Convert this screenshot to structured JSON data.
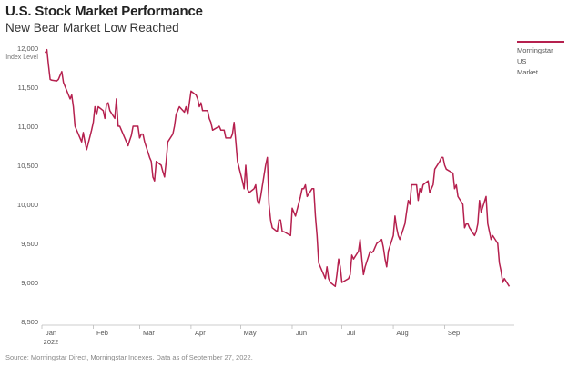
{
  "header": {
    "title": "U.S. Stock Market Performance",
    "subtitle": "New Bear Market Low Reached"
  },
  "legend": {
    "label": "Morningstar\nUS\nMarket",
    "color": "#b5204e"
  },
  "source": "Source: Morningstar Direct, Morningstar Indexes. Data as of September 27, 2022.",
  "chart_data": {
    "type": "line",
    "title": "U.S. Stock Market Performance",
    "subtitle": "New Bear Market Low Reached",
    "ylabel": "Index Level",
    "ylim": [
      8500,
      12000
    ],
    "yticks": [
      "12,000",
      "11,500",
      "11,000",
      "10,500",
      "10,000",
      "9,500",
      "9,000",
      "8,500"
    ],
    "ytick_values": [
      12000,
      11500,
      11000,
      10500,
      10000,
      9500,
      9000,
      8500
    ],
    "xlim": [
      "2022-01-01",
      "2022-09-30"
    ],
    "xticks": [
      {
        "label": "Jan",
        "date": "2022-01-01"
      },
      {
        "label": "Feb",
        "date": "2022-02-01"
      },
      {
        "label": "Mar",
        "date": "2022-03-01"
      },
      {
        "label": "Apr",
        "date": "2022-04-01"
      },
      {
        "label": "May",
        "date": "2022-05-01"
      },
      {
        "label": "Jun",
        "date": "2022-06-01"
      },
      {
        "label": "Jul",
        "date": "2022-07-01"
      },
      {
        "label": "Aug",
        "date": "2022-08-01"
      },
      {
        "label": "Sep",
        "date": "2022-09-01"
      }
    ],
    "xyear_label": "2022",
    "grid": false,
    "legend_position": "top-right",
    "series": [
      {
        "name": "Morningstar US Market",
        "color": "#b5204e",
        "points": [
          [
            "2022-01-03",
            11940
          ],
          [
            "2022-01-04",
            11980
          ],
          [
            "2022-01-05",
            11780
          ],
          [
            "2022-01-06",
            11600
          ],
          [
            "2022-01-07",
            11590
          ],
          [
            "2022-01-10",
            11580
          ],
          [
            "2022-01-11",
            11600
          ],
          [
            "2022-01-12",
            11650
          ],
          [
            "2022-01-13",
            11700
          ],
          [
            "2022-01-14",
            11560
          ],
          [
            "2022-01-18",
            11350
          ],
          [
            "2022-01-19",
            11400
          ],
          [
            "2022-01-20",
            11250
          ],
          [
            "2022-01-21",
            11000
          ],
          [
            "2022-01-24",
            10850
          ],
          [
            "2022-01-25",
            10800
          ],
          [
            "2022-01-26",
            10920
          ],
          [
            "2022-01-27",
            10800
          ],
          [
            "2022-01-28",
            10700
          ],
          [
            "2022-01-31",
            10950
          ],
          [
            "2022-02-01",
            11050
          ],
          [
            "2022-02-02",
            11250
          ],
          [
            "2022-02-03",
            11150
          ],
          [
            "2022-02-04",
            11250
          ],
          [
            "2022-02-07",
            11200
          ],
          [
            "2022-02-08",
            11100
          ],
          [
            "2022-02-09",
            11280
          ],
          [
            "2022-02-10",
            11300
          ],
          [
            "2022-02-11",
            11200
          ],
          [
            "2022-02-14",
            11100
          ],
          [
            "2022-02-15",
            11350
          ],
          [
            "2022-02-16",
            11000
          ],
          [
            "2022-02-17",
            11000
          ],
          [
            "2022-02-18",
            10950
          ],
          [
            "2022-02-22",
            10750
          ],
          [
            "2022-02-23",
            10820
          ],
          [
            "2022-02-24",
            10880
          ],
          [
            "2022-02-25",
            11000
          ],
          [
            "2022-02-28",
            11000
          ],
          [
            "2022-03-01",
            10850
          ],
          [
            "2022-03-02",
            10900
          ],
          [
            "2022-03-03",
            10900
          ],
          [
            "2022-03-04",
            10800
          ],
          [
            "2022-03-07",
            10600
          ],
          [
            "2022-03-08",
            10550
          ],
          [
            "2022-03-09",
            10350
          ],
          [
            "2022-03-10",
            10300
          ],
          [
            "2022-03-11",
            10550
          ],
          [
            "2022-03-14",
            10500
          ],
          [
            "2022-03-15",
            10420
          ],
          [
            "2022-03-16",
            10350
          ],
          [
            "2022-03-17",
            10550
          ],
          [
            "2022-03-18",
            10800
          ],
          [
            "2022-03-21",
            10900
          ],
          [
            "2022-03-22",
            11000
          ],
          [
            "2022-03-23",
            11150
          ],
          [
            "2022-03-24",
            11200
          ],
          [
            "2022-03-25",
            11250
          ],
          [
            "2022-03-28",
            11180
          ],
          [
            "2022-03-29",
            11250
          ],
          [
            "2022-03-30",
            11150
          ],
          [
            "2022-03-31",
            11300
          ],
          [
            "2022-04-01",
            11450
          ],
          [
            "2022-04-04",
            11400
          ],
          [
            "2022-04-05",
            11350
          ],
          [
            "2022-04-06",
            11250
          ],
          [
            "2022-04-07",
            11300
          ],
          [
            "2022-04-08",
            11200
          ],
          [
            "2022-04-11",
            11200
          ],
          [
            "2022-04-12",
            11100
          ],
          [
            "2022-04-13",
            11050
          ],
          [
            "2022-04-14",
            10950
          ],
          [
            "2022-04-18",
            11000
          ],
          [
            "2022-04-19",
            10950
          ],
          [
            "2022-04-20",
            10950
          ],
          [
            "2022-04-21",
            10950
          ],
          [
            "2022-04-22",
            10850
          ],
          [
            "2022-04-25",
            10850
          ],
          [
            "2022-04-26",
            10900
          ],
          [
            "2022-04-27",
            11050
          ],
          [
            "2022-04-28",
            10800
          ],
          [
            "2022-04-29",
            10550
          ],
          [
            "2022-05-02",
            10300
          ],
          [
            "2022-05-03",
            10200
          ],
          [
            "2022-05-04",
            10500
          ],
          [
            "2022-05-05",
            10200
          ],
          [
            "2022-05-06",
            10150
          ],
          [
            "2022-05-09",
            10200
          ],
          [
            "2022-05-10",
            10250
          ],
          [
            "2022-05-11",
            10050
          ],
          [
            "2022-05-12",
            10000
          ],
          [
            "2022-05-13",
            10100
          ],
          [
            "2022-05-16",
            10500
          ],
          [
            "2022-05-17",
            10600
          ],
          [
            "2022-05-18",
            10000
          ],
          [
            "2022-05-19",
            9800
          ],
          [
            "2022-05-20",
            9700
          ],
          [
            "2022-05-23",
            9650
          ],
          [
            "2022-05-24",
            9800
          ],
          [
            "2022-05-25",
            9800
          ],
          [
            "2022-05-26",
            9650
          ],
          [
            "2022-05-27",
            9650
          ],
          [
            "2022-05-31",
            9600
          ],
          [
            "2022-06-01",
            9950
          ],
          [
            "2022-06-02",
            9900
          ],
          [
            "2022-06-03",
            9850
          ],
          [
            "2022-06-06",
            10100
          ],
          [
            "2022-06-07",
            10200
          ],
          [
            "2022-06-08",
            10200
          ],
          [
            "2022-06-09",
            10250
          ],
          [
            "2022-06-10",
            10100
          ],
          [
            "2022-06-13",
            10200
          ],
          [
            "2022-06-14",
            10200
          ],
          [
            "2022-06-15",
            9850
          ],
          [
            "2022-06-16",
            9600
          ],
          [
            "2022-06-17",
            9250
          ],
          [
            "2022-06-21",
            9050
          ],
          [
            "2022-06-22",
            9200
          ],
          [
            "2022-06-23",
            9050
          ],
          [
            "2022-06-24",
            9000
          ],
          [
            "2022-06-27",
            8950
          ],
          [
            "2022-06-28",
            9100
          ],
          [
            "2022-06-29",
            9300
          ],
          [
            "2022-06-30",
            9200
          ],
          [
            "2022-07-01",
            9000
          ],
          [
            "2022-07-05",
            9050
          ],
          [
            "2022-07-06",
            9100
          ],
          [
            "2022-07-07",
            9350
          ],
          [
            "2022-07-08",
            9300
          ],
          [
            "2022-07-11",
            9400
          ],
          [
            "2022-07-12",
            9550
          ],
          [
            "2022-07-13",
            9300
          ],
          [
            "2022-07-14",
            9100
          ],
          [
            "2022-07-15",
            9200
          ],
          [
            "2022-07-18",
            9400
          ],
          [
            "2022-07-19",
            9380
          ],
          [
            "2022-07-20",
            9400
          ],
          [
            "2022-07-21",
            9450
          ],
          [
            "2022-07-22",
            9500
          ],
          [
            "2022-07-25",
            9550
          ],
          [
            "2022-07-26",
            9450
          ],
          [
            "2022-07-27",
            9300
          ],
          [
            "2022-07-28",
            9200
          ],
          [
            "2022-07-29",
            9400
          ],
          [
            "2022-08-01",
            9600
          ],
          [
            "2022-08-02",
            9850
          ],
          [
            "2022-08-03",
            9700
          ],
          [
            "2022-08-04",
            9600
          ],
          [
            "2022-08-05",
            9550
          ],
          [
            "2022-08-08",
            9750
          ],
          [
            "2022-08-09",
            9900
          ],
          [
            "2022-08-10",
            10050
          ],
          [
            "2022-08-11",
            10000
          ],
          [
            "2022-08-12",
            10250
          ],
          [
            "2022-08-15",
            10250
          ],
          [
            "2022-08-16",
            10050
          ],
          [
            "2022-08-17",
            10200
          ],
          [
            "2022-08-18",
            10150
          ],
          [
            "2022-08-19",
            10250
          ],
          [
            "2022-08-22",
            10300
          ],
          [
            "2022-08-23",
            10150
          ],
          [
            "2022-08-24",
            10200
          ],
          [
            "2022-08-25",
            10250
          ],
          [
            "2022-08-26",
            10450
          ],
          [
            "2022-08-29",
            10550
          ],
          [
            "2022-08-30",
            10600
          ],
          [
            "2022-08-31",
            10600
          ],
          [
            "2022-09-01",
            10500
          ],
          [
            "2022-09-02",
            10450
          ],
          [
            "2022-09-06",
            10400
          ],
          [
            "2022-09-07",
            10200
          ],
          [
            "2022-09-08",
            10250
          ],
          [
            "2022-09-09",
            10100
          ],
          [
            "2022-09-12",
            10000
          ],
          [
            "2022-09-13",
            9700
          ],
          [
            "2022-09-14",
            9750
          ],
          [
            "2022-09-15",
            9750
          ],
          [
            "2022-09-16",
            9700
          ],
          [
            "2022-09-19",
            9600
          ],
          [
            "2022-09-20",
            9650
          ],
          [
            "2022-09-21",
            9750
          ],
          [
            "2022-09-22",
            10050
          ],
          [
            "2022-09-23",
            9900
          ],
          [
            "2022-09-26",
            10100
          ],
          [
            "2022-09-27",
            9750
          ],
          [
            "2022-09-28",
            9650
          ],
          [
            "2022-09-29",
            9550
          ],
          [
            "2022-09-30",
            9600
          ],
          [
            "2022-10-03",
            9500
          ],
          [
            "2022-10-04",
            9250
          ],
          [
            "2022-10-05",
            9150
          ],
          [
            "2022-10-06",
            9000
          ],
          [
            "2022-10-07",
            9050
          ],
          [
            "2022-10-10",
            8950
          ]
        ]
      }
    ]
  }
}
